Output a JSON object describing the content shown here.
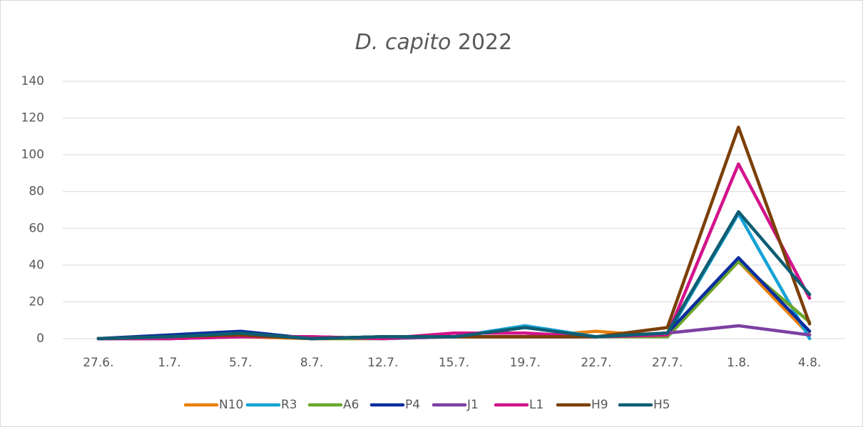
{
  "chart_data": {
    "type": "line",
    "title": [
      "D. capito",
      "2022"
    ],
    "categories": [
      "27.6.",
      "1.7.",
      "5.7.",
      "8.7.",
      "12.7.",
      "15.7.",
      "19.7.",
      "22.7.",
      "27.7.",
      "1.8.",
      "4.8."
    ],
    "series": [
      {
        "name": "N10",
        "color": "#e8800f",
        "values": [
          0,
          0,
          1,
          0,
          0,
          1,
          1,
          4,
          1,
          42,
          2
        ]
      },
      {
        "name": "R3",
        "color": "#15a3d6",
        "values": [
          0,
          0,
          2,
          0,
          1,
          1,
          7,
          1,
          2,
          68,
          0
        ]
      },
      {
        "name": "A6",
        "color": "#6aa62a",
        "values": [
          0,
          0,
          2,
          0,
          0,
          1,
          1,
          1,
          1,
          42,
          9
        ]
      },
      {
        "name": "P4",
        "color": "#0b2d9e",
        "values": [
          0,
          2,
          4,
          0,
          1,
          1,
          1,
          1,
          3,
          44,
          4
        ]
      },
      {
        "name": "J1",
        "color": "#7d40a2",
        "values": [
          0,
          0,
          1,
          1,
          0,
          1,
          1,
          1,
          3,
          7,
          2
        ]
      },
      {
        "name": "L1",
        "color": "#d3138b",
        "values": [
          0,
          0,
          1,
          1,
          0,
          3,
          3,
          1,
          2,
          95,
          22
        ]
      },
      {
        "name": "H9",
        "color": "#7b4008",
        "values": [
          0,
          1,
          2,
          0,
          1,
          1,
          1,
          1,
          6,
          115,
          8
        ]
      },
      {
        "name": "H5",
        "color": "#0e5d72",
        "values": [
          0,
          1,
          3,
          0,
          1,
          1,
          6,
          1,
          3,
          69,
          24
        ]
      }
    ],
    "ylim": [
      0,
      140
    ],
    "yticks": [
      0,
      20,
      40,
      60,
      80,
      100,
      120,
      140
    ],
    "grid": true,
    "legend": "bottom"
  }
}
